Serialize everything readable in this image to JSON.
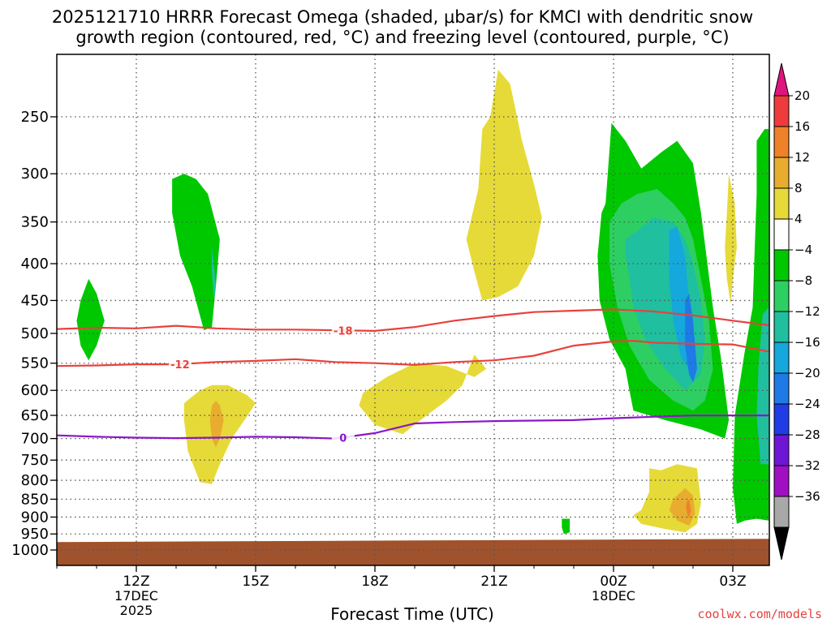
{
  "chart_data": {
    "type": "heatmap",
    "title": "2025121710 HRRR Forecast Omega (shaded, μbar/s) for KMCI with dendritic snow growth region (contoured, red, °C) and freezing level (contoured, purple, °C)",
    "title_line1": "2025121710 HRRR Forecast Omega (shaded, μbar/s) for KMCI with dendritic snow",
    "title_line2": "growth region (contoured, red, °C) and freezing level (contoured, purple, °C)",
    "xlabel": "Forecast Time (UTC)",
    "ylabel": "",
    "credit": "coolwx.com/models",
    "x_ticks": [
      {
        "hour": 12,
        "label": "12Z",
        "sub": [
          "17DEC",
          "2025"
        ]
      },
      {
        "hour": 15,
        "label": "15Z",
        "sub": []
      },
      {
        "hour": 18,
        "label": "18Z",
        "sub": []
      },
      {
        "hour": 21,
        "label": "21Z",
        "sub": []
      },
      {
        "hour": 24,
        "label": "00Z",
        "sub": [
          "18DEC"
        ]
      },
      {
        "hour": 27,
        "label": "03Z",
        "sub": []
      }
    ],
    "xlim_hours_from_00Z_17DEC": [
      10,
      27.9
    ],
    "y_scale": "log-pressure (reversed)",
    "y_ticks": [
      250,
      300,
      350,
      400,
      450,
      500,
      550,
      600,
      650,
      700,
      750,
      800,
      850,
      900,
      950,
      1000
    ],
    "ylim_hPa": [
      190,
      1020
    ],
    "grid": true,
    "colorbar": {
      "position": "right",
      "labels": [
        "20",
        "16",
        "12",
        "8",
        "4",
        "−4",
        "−8",
        "−12",
        "−16",
        "−20",
        "−24",
        "−28",
        "−32",
        "−36"
      ],
      "colors": [
        "#ef3b3b",
        "#ef8229",
        "#e8ad2e",
        "#e6da38",
        "#ffffff",
        "#00c800",
        "#2ecf62",
        "#1fbfa0",
        "#14a8dc",
        "#1e7ae6",
        "#1f3ce6",
        "#6f16d6",
        "#a010c2",
        "#a8a8a8"
      ],
      "top_arrow_color": "#e0147e",
      "bottom_arrow_color": "#000000"
    },
    "shading": [
      {
        "level": "-4 to -8",
        "color": "#00c800",
        "t": [
          10.8,
          10.6,
          10.5,
          10.6,
          10.8,
          11.0,
          11.2,
          11.0,
          10.8
        ],
        "p": [
          420,
          450,
          480,
          520,
          545,
          520,
          480,
          440,
          420
        ]
      },
      {
        "level": "-4 to -8",
        "color": "#00c800",
        "t": [
          12.9,
          13.2,
          13.5,
          13.8,
          14.1,
          14.0,
          13.9,
          13.7,
          13.4,
          13.1,
          12.9
        ],
        "p": [
          305,
          300,
          305,
          320,
          370,
          430,
          490,
          495,
          430,
          390,
          340
        ]
      },
      {
        "level": "-8 to -12",
        "color": "#1fbfa0",
        "t": [
          13.9,
          13.95,
          14.0,
          13.95,
          13.9
        ],
        "p": [
          380,
          400,
          430,
          450,
          410
        ]
      },
      {
        "level": "4 to 8",
        "color": "#e6da38",
        "t": [
          13.2,
          13.6,
          13.9,
          14.3,
          14.8,
          15.0,
          14.8,
          14.4,
          14.1,
          13.9,
          13.6,
          13.3,
          13.2
        ],
        "p": [
          625,
          600,
          590,
          590,
          610,
          625,
          650,
          700,
          760,
          810,
          805,
          730,
          660
        ]
      },
      {
        "level": "8 to 12",
        "color": "#e8ad2e",
        "t": [
          14.0,
          14.1,
          14.2,
          14.1,
          14.0,
          13.9,
          13.85,
          13.9
        ],
        "p": [
          620,
          630,
          660,
          700,
          720,
          700,
          660,
          630
        ]
      },
      {
        "level": "4 to 8",
        "color": "#e6da38",
        "t": [
          17.7,
          18.3,
          19.0,
          19.8,
          20.5,
          20.8,
          20.5,
          20.2,
          19.8,
          19.3,
          18.7,
          18.0,
          17.6
        ],
        "p": [
          605,
          575,
          550,
          555,
          575,
          560,
          535,
          590,
          620,
          650,
          690,
          670,
          630
        ]
      },
      {
        "level": "4 to 8",
        "color": "#e6da38",
        "t": [
          20.7,
          20.9,
          21.1,
          21.4,
          21.7,
          22.0,
          22.2,
          22.0,
          21.6,
          21.1,
          20.7,
          20.5,
          20.3,
          20.6
        ],
        "p": [
          260,
          250,
          215,
          225,
          270,
          310,
          345,
          390,
          430,
          445,
          450,
          410,
          370,
          315
        ]
      },
      {
        "level": "-4 to -8",
        "color": "#00c800",
        "t": [
          23.8,
          23.95,
          24.3,
          24.7,
          25.2,
          25.6,
          26.0,
          26.2,
          26.5,
          26.7,
          26.9,
          26.8,
          26.2,
          25.3,
          24.5,
          24.4,
          24.3,
          23.9,
          23.65,
          23.6,
          23.7
        ],
        "p": [
          330,
          255,
          270,
          295,
          280,
          270,
          290,
          340,
          460,
          540,
          660,
          700,
          680,
          660,
          640,
          600,
          560,
          510,
          450,
          390,
          340
        ]
      },
      {
        "level": "-8 to -12",
        "color": "#2ecf62",
        "t": [
          23.9,
          24.2,
          24.6,
          25.1,
          25.5,
          25.8,
          26.0,
          26.2,
          26.4,
          26.5,
          26.3,
          26.0,
          25.5,
          24.9,
          24.4,
          24.1,
          23.9
        ],
        "p": [
          350,
          330,
          320,
          315,
          330,
          345,
          370,
          420,
          480,
          560,
          620,
          640,
          620,
          580,
          520,
          460,
          400
        ]
      },
      {
        "level": "-12 to -16",
        "color": "#1fbfa0",
        "t": [
          24.3,
          24.6,
          25.0,
          25.5,
          25.8,
          26.0,
          26.2,
          26.3,
          26.2,
          25.8,
          25.3,
          24.8,
          24.5,
          24.4,
          24.3
        ],
        "p": [
          370,
          360,
          345,
          350,
          370,
          400,
          450,
          510,
          570,
          600,
          560,
          510,
          460,
          420,
          390
        ]
      },
      {
        "level": "-16 to -20",
        "color": "#14a8dc",
        "t": [
          25.4,
          25.6,
          25.8,
          25.9,
          26.0,
          25.9,
          25.7,
          25.5,
          25.4
        ],
        "p": [
          360,
          355,
          390,
          450,
          520,
          560,
          540,
          480,
          420
        ]
      },
      {
        "level": "-20 to -24",
        "color": "#1e7ae6",
        "t": [
          25.8,
          25.9,
          26.0,
          26.1,
          26.0,
          25.9,
          25.8
        ],
        "p": [
          450,
          440,
          480,
          560,
          585,
          570,
          520
        ]
      },
      {
        "level": "-4 to -8",
        "color": "#00c800",
        "t": [
          27.6,
          27.8,
          27.9,
          27.9,
          27.6,
          27.3,
          27.1,
          27.0,
          27.05,
          27.3,
          27.5,
          27.55,
          27.6
        ],
        "p": [
          270,
          260,
          260,
          910,
          905,
          910,
          920,
          820,
          650,
          530,
          460,
          380,
          320
        ]
      },
      {
        "level": "-8 to -12",
        "color": "#1fbfa0",
        "t": [
          27.75,
          27.9,
          27.9,
          27.7,
          27.6,
          27.65
        ],
        "p": [
          470,
          460,
          760,
          760,
          650,
          550
        ]
      },
      {
        "level": "4 to 8",
        "color": "#e6da38",
        "t": [
          26.9,
          27.05,
          27.1,
          27.0,
          26.95,
          26.85,
          26.8,
          26.85
        ],
        "p": [
          300,
          330,
          380,
          420,
          455,
          420,
          380,
          340
        ]
      },
      {
        "level": "4 to 8",
        "color": "#e6da38",
        "t": [
          24.9,
          25.2,
          25.6,
          26.1,
          26.2,
          26.1,
          25.8,
          25.3,
          24.7,
          24.5,
          24.7,
          24.9
        ],
        "p": [
          770,
          775,
          760,
          770,
          860,
          920,
          945,
          935,
          920,
          895,
          880,
          830
        ]
      },
      {
        "level": "8 to 12",
        "color": "#e8ad2e",
        "t": [
          25.6,
          25.8,
          26.0,
          26.05,
          25.9,
          25.6,
          25.4,
          25.5
        ],
        "p": [
          840,
          820,
          840,
          890,
          925,
          910,
          880,
          850
        ]
      },
      {
        "level": "12 to 16",
        "color": "#ef8229",
        "t": [
          25.85,
          25.9,
          25.95,
          25.9,
          25.85,
          25.82
        ],
        "p": [
          855,
          850,
          880,
          905,
          890,
          870
        ]
      },
      {
        "level": "-4 to -8",
        "color": "#00c800",
        "t": [
          22.7,
          22.9,
          22.9,
          22.75,
          22.7
        ],
        "p": [
          905,
          905,
          945,
          950,
          930
        ]
      }
    ],
    "contours": [
      {
        "name": "-18",
        "color": "#e8413c",
        "label": "-18",
        "label_at_hour": 17.2,
        "t": [
          10,
          11,
          12,
          13,
          14,
          15,
          16,
          17,
          18,
          19,
          20,
          21,
          22,
          23,
          24,
          25,
          26,
          27,
          27.9
        ],
        "p": [
          493,
          491,
          492,
          488,
          492,
          494,
          494,
          495,
          496,
          490,
          480,
          473,
          467,
          465,
          463,
          466,
          472,
          480,
          487
        ]
      },
      {
        "name": "-12",
        "color": "#e8413c",
        "label": "-12",
        "label_at_hour": 13.1,
        "t": [
          10,
          11,
          12,
          13,
          14,
          15,
          16,
          17,
          18,
          19,
          20,
          21,
          22,
          23,
          24,
          24.5,
          25,
          26,
          27,
          27.9
        ],
        "p": [
          555,
          554,
          552,
          552,
          548,
          546,
          543,
          548,
          550,
          553,
          548,
          545,
          537,
          520,
          513,
          512,
          515,
          517,
          518,
          530
        ]
      },
      {
        "name": "0",
        "color": "#8b17c8",
        "label": "0",
        "label_at_hour": 17.2,
        "t": [
          10,
          11,
          12,
          13,
          14,
          15,
          16,
          17,
          18,
          19,
          20,
          21,
          22,
          23,
          24,
          25,
          26,
          27,
          27.9
        ],
        "p": [
          693,
          696,
          698,
          699,
          698,
          696,
          697,
          700,
          688,
          667,
          664,
          662,
          661,
          660,
          656,
          653,
          650,
          650,
          650
        ]
      }
    ],
    "terrain": {
      "color": "#a0522d",
      "surface_hPa_start": 975,
      "surface_hPa_end": 965
    }
  }
}
